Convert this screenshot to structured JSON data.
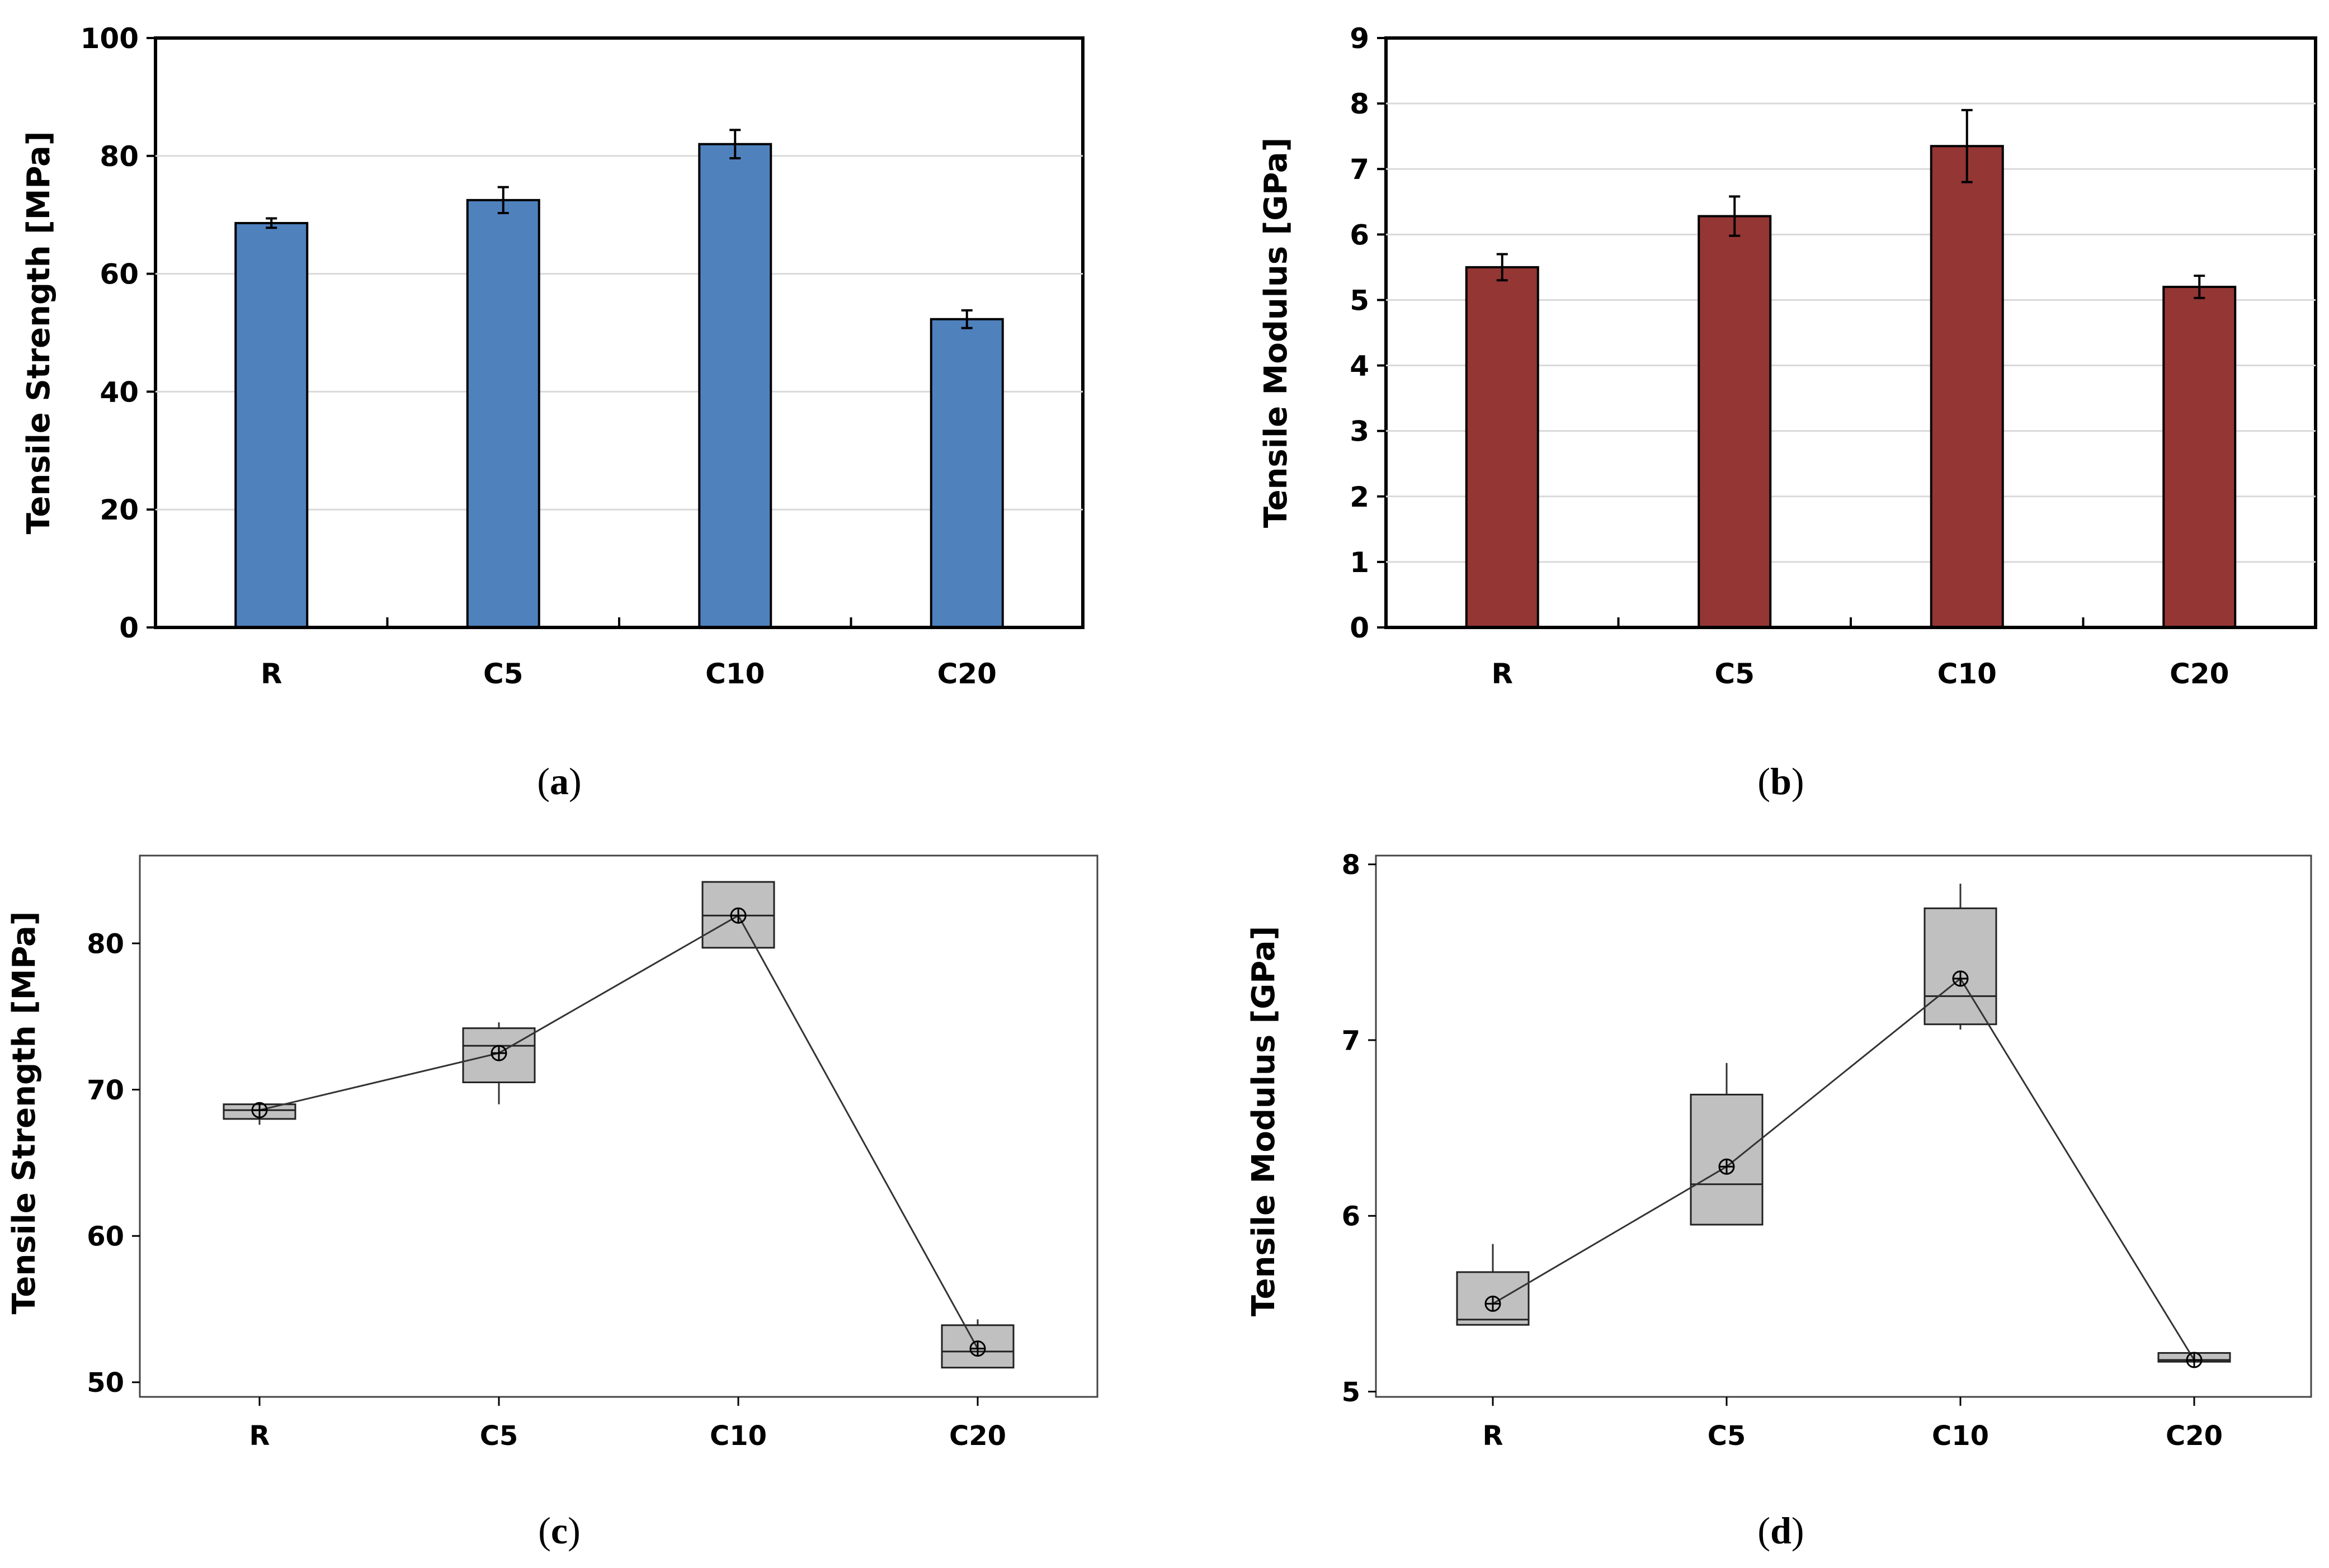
{
  "chart_data": [
    {
      "id": "a",
      "type": "bar",
      "caption_letter": "a",
      "categories": [
        "R",
        "C5",
        "C10",
        "C20"
      ],
      "values": [
        68.6,
        72.5,
        82.0,
        52.3
      ],
      "errors": [
        0.8,
        2.2,
        2.4,
        1.5
      ],
      "ylabel": "Tensile Strength [MPa]",
      "ylim": [
        0,
        100
      ],
      "yticks": [
        "0",
        "20",
        "40",
        "60",
        "80",
        "100"
      ],
      "ytick_values": [
        0,
        20,
        40,
        60,
        80,
        100
      ],
      "grid": true,
      "color": "#4f81bd"
    },
    {
      "id": "b",
      "type": "bar",
      "caption_letter": "b",
      "categories": [
        "R",
        "C5",
        "C10",
        "C20"
      ],
      "values": [
        5.5,
        6.28,
        7.35,
        5.2
      ],
      "errors": [
        0.2,
        0.3,
        0.55,
        0.17
      ],
      "ylabel": "Tensile Modulus [GPa]",
      "ylim": [
        0,
        9
      ],
      "yticks": [
        "0",
        "1",
        "2",
        "3",
        "4",
        "5",
        "6",
        "7",
        "8",
        "9"
      ],
      "ytick_values": [
        0,
        1,
        2,
        3,
        4,
        5,
        6,
        7,
        8,
        9
      ],
      "grid": true,
      "color": "#943634"
    },
    {
      "id": "c",
      "type": "box",
      "caption_letter": "c",
      "categories": [
        "R",
        "C5",
        "C10",
        "C20"
      ],
      "boxes": [
        {
          "q1": 68.0,
          "median": 68.6,
          "q3": 69.0,
          "whisker_low": 67.6,
          "whisker_high": 69.0,
          "mean": 68.6
        },
        {
          "q1": 70.5,
          "median": 73.0,
          "q3": 74.2,
          "whisker_low": 69.0,
          "whisker_high": 74.6,
          "mean": 72.5
        },
        {
          "q1": 79.7,
          "median": 81.9,
          "q3": 84.2,
          "whisker_low": 79.7,
          "whisker_high": 84.2,
          "mean": 81.9
        },
        {
          "q1": 51.0,
          "median": 52.1,
          "q3": 53.9,
          "whisker_low": 51.0,
          "whisker_high": 54.3,
          "mean": 52.3
        }
      ],
      "ylabel": "Tensile Strength [MPa]",
      "ylim": [
        49,
        86
      ],
      "yticks": [
        "50",
        "60",
        "70",
        "80"
      ],
      "ytick_values": [
        50,
        60,
        70,
        80
      ],
      "grid": false,
      "color": "#c0c0c0"
    },
    {
      "id": "d",
      "type": "box",
      "caption_letter": "d",
      "categories": [
        "R",
        "C5",
        "C10",
        "C20"
      ],
      "boxes": [
        {
          "q1": 5.38,
          "median": 5.41,
          "q3": 5.68,
          "whisker_low": 5.38,
          "whisker_high": 5.84,
          "mean": 5.5
        },
        {
          "q1": 5.95,
          "median": 6.18,
          "q3": 6.69,
          "whisker_low": 5.95,
          "whisker_high": 6.87,
          "mean": 6.28
        },
        {
          "q1": 7.09,
          "median": 7.25,
          "q3": 7.75,
          "whisker_low": 7.06,
          "whisker_high": 7.89,
          "mean": 7.35
        },
        {
          "q1": 5.17,
          "median": 5.18,
          "q3": 5.22,
          "whisker_low": 5.17,
          "whisker_high": 5.22,
          "mean": 5.18
        }
      ],
      "ylabel": "Tensile Modulus [GPa]",
      "ylim": [
        4.97,
        8.05
      ],
      "yticks": [
        "5",
        "6",
        "7",
        "8"
      ],
      "ytick_values": [
        5,
        6,
        7,
        8
      ],
      "grid": false,
      "color": "#c0c0c0"
    }
  ]
}
